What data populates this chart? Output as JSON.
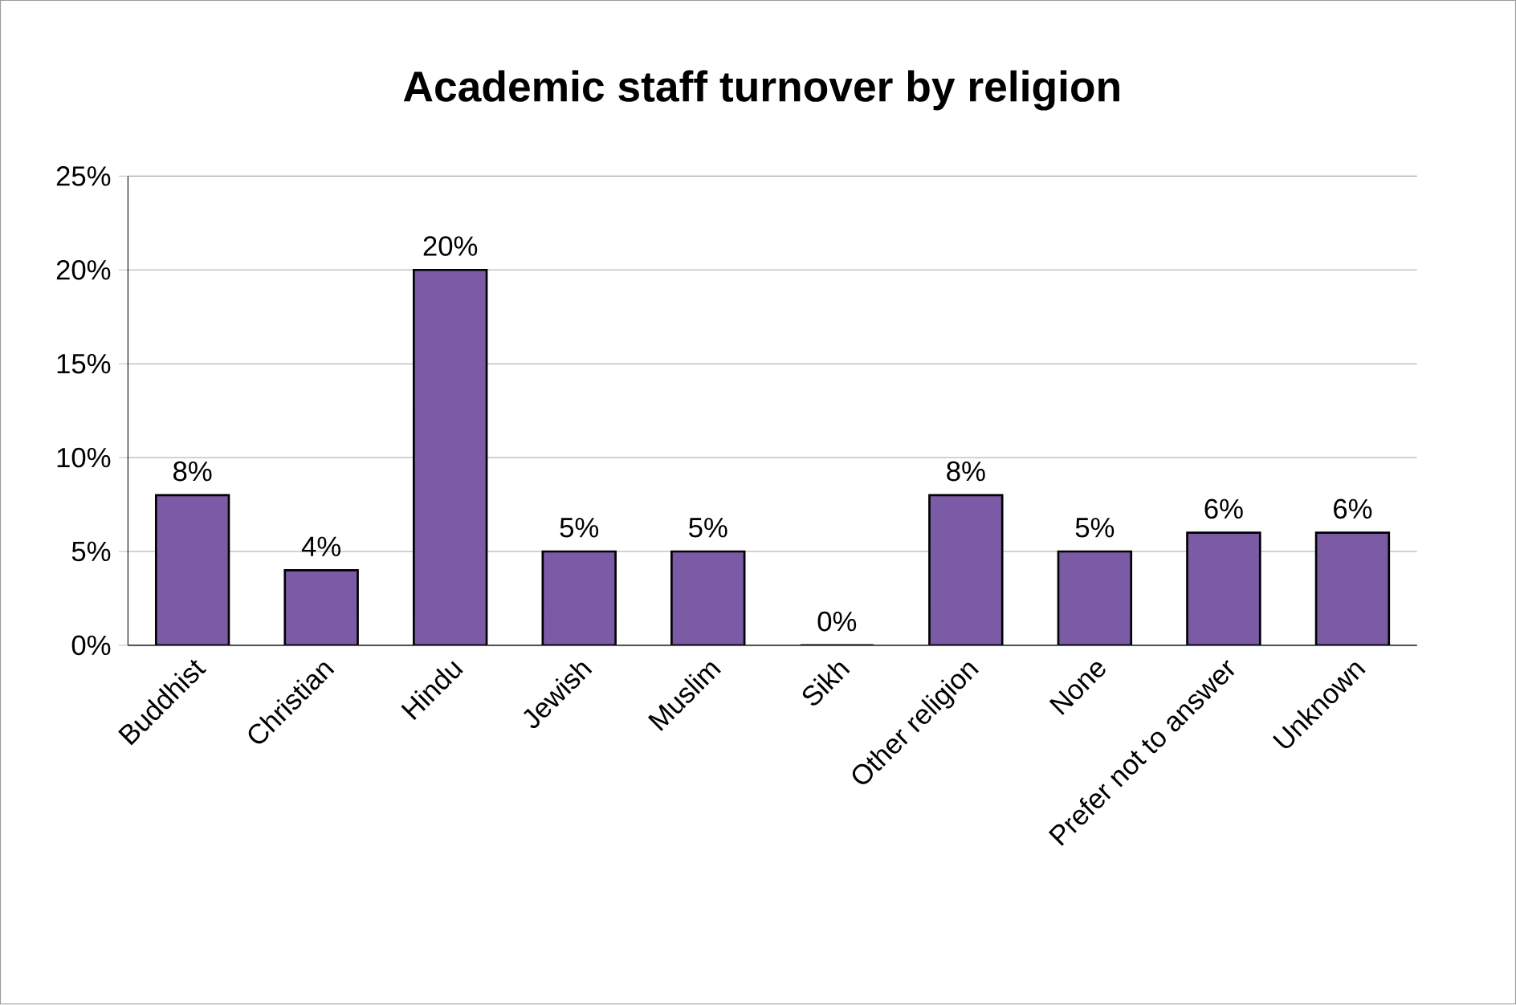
{
  "chart_data": {
    "type": "bar",
    "title": "Academic staff turnover by religion",
    "categories": [
      "Buddhist",
      "Christian",
      "Hindu",
      "Jewish",
      "Muslim",
      "Sikh",
      "Other religion",
      "None",
      "Prefer not to answer",
      "Unknown"
    ],
    "values": [
      8,
      4,
      20,
      5,
      5,
      0,
      8,
      5,
      6,
      6
    ],
    "value_labels": [
      "8%",
      "4%",
      "20%",
      "5%",
      "5%",
      "0%",
      "8%",
      "5%",
      "6%",
      "6%"
    ],
    "color": "#7b5aa6",
    "ylim": [
      0,
      25
    ],
    "yticks": [
      {
        "value": 0,
        "label": "0%"
      },
      {
        "value": 5,
        "label": "5%"
      },
      {
        "value": 10,
        "label": "10%"
      },
      {
        "value": 15,
        "label": "15%"
      },
      {
        "value": 20,
        "label": "20%"
      },
      {
        "value": 25,
        "label": "25%"
      }
    ],
    "grid": "y"
  }
}
